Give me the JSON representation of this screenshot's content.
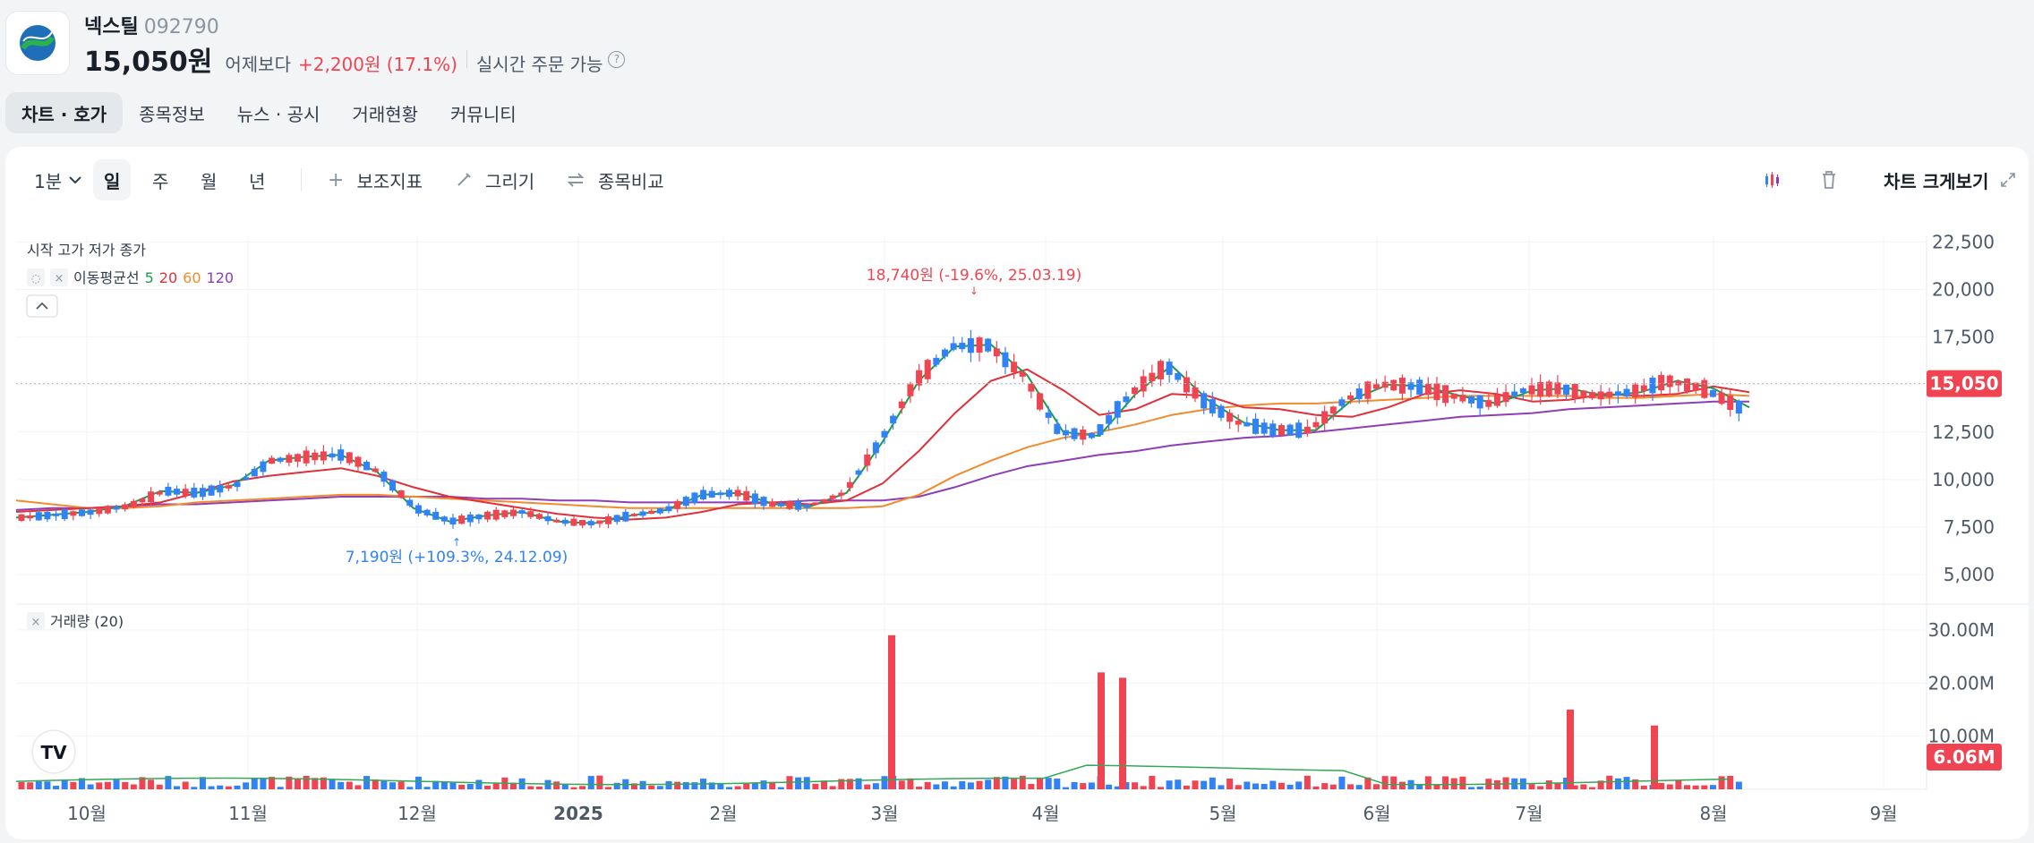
{
  "header": {
    "name": "넥스틸",
    "code": "092790",
    "price": "15,050원",
    "vs_label": "어제보다",
    "change": "+2,200원 (17.1%)",
    "live_status": "실시간 주문 가능",
    "help_glyph": "?",
    "logo_icon": "nexteel-logo-icon"
  },
  "tabs": [
    {
      "label": "차트 · 호가",
      "active": true
    },
    {
      "label": "종목정보",
      "active": false
    },
    {
      "label": "뉴스 · 공시",
      "active": false
    },
    {
      "label": "거래현황",
      "active": false
    },
    {
      "label": "커뮤니티",
      "active": false
    }
  ],
  "toolbar": {
    "interval": "1분",
    "period_day": "일",
    "period_week": "주",
    "period_month": "월",
    "period_year": "년",
    "indicators": "보조지표",
    "draw": "그리기",
    "compare": "종목비교",
    "fullscreen": "차트 크게보기"
  },
  "legend": {
    "ohlc": "시작 고가 저가 종가",
    "ma_label": "이동평균선",
    "ma5": "5",
    "ma20": "20",
    "ma60": "60",
    "ma120": "120",
    "volume_label": "거래량 (20)"
  },
  "colors": {
    "up": "#f04452",
    "down": "#3182f6",
    "ma5": "#1b9e4b",
    "ma20": "#e0303a",
    "ma60": "#f08c2e",
    "ma120": "#8e3fb5",
    "volume_ma": "#34a853"
  },
  "chart_data": [
    {
      "type": "candlestick",
      "title": "",
      "x_ticks": [
        "10월",
        "11월",
        "12월",
        "2025",
        "2월",
        "3월",
        "4월",
        "5월",
        "6월",
        "7월",
        "8월",
        "9월"
      ],
      "y_ticks": [
        "22,500",
        "20,000",
        "17,500",
        "15,000",
        "12,500",
        "10,000",
        "7,500",
        "5,000"
      ],
      "ylim": [
        3500,
        22800
      ],
      "last_price": 15050,
      "last_price_label": "15,050",
      "annotations": [
        {
          "text": "18,740원 (-19.6%, 25.03.19)",
          "value": 18740,
          "kind": "high"
        },
        {
          "text": "7,190원 (+109.3%, 24.12.09)",
          "value": 7190,
          "kind": "low"
        }
      ],
      "moving_averages": {
        "ma5": [
          8000,
          8150,
          8300,
          8600,
          9400,
          9300,
          9700,
          11000,
          11200,
          11300,
          10400,
          8500,
          7800,
          8100,
          8300,
          7800,
          7700,
          8100,
          8400,
          9200,
          9300,
          8700,
          8600,
          9300,
          12000,
          15200,
          17000,
          17100,
          15500,
          12500,
          12300,
          14500,
          16000,
          14200,
          13000,
          12600,
          12600,
          14200,
          15000,
          14900,
          14400,
          14000,
          14700,
          14800,
          14400,
          14600,
          15200,
          14800,
          13800
        ],
        "ma20": [
          8300,
          8400,
          8500,
          8600,
          8800,
          9300,
          9900,
          10200,
          10400,
          10600,
          10200,
          9600,
          9100,
          8800,
          8500,
          8200,
          8000,
          7900,
          8000,
          8300,
          8700,
          8800,
          8700,
          8900,
          9800,
          11500,
          13500,
          15200,
          15800,
          14700,
          13400,
          13700,
          14500,
          14400,
          13800,
          13700,
          13400,
          13300,
          13800,
          14500,
          14700,
          14500,
          14100,
          14200,
          14500,
          14400,
          14500,
          14900,
          14600
        ],
        "ma60": [
          8900,
          8700,
          8500,
          8500,
          8600,
          8800,
          8900,
          9000,
          9100,
          9200,
          9200,
          9100,
          9000,
          8900,
          8800,
          8700,
          8600,
          8500,
          8500,
          8500,
          8500,
          8500,
          8500,
          8500,
          8600,
          9200,
          10200,
          11000,
          11700,
          12200,
          12500,
          12900,
          13400,
          13700,
          13900,
          14000,
          14000,
          14100,
          14200,
          14300,
          14400,
          14400,
          14400,
          14400,
          14300,
          14300,
          14400,
          14500,
          14400
        ],
        "ma120": [
          8400,
          8500,
          8500,
          8600,
          8700,
          8700,
          8800,
          8900,
          9000,
          9100,
          9100,
          9100,
          9100,
          9000,
          9000,
          8900,
          8900,
          8800,
          8800,
          8800,
          8800,
          8800,
          8900,
          8900,
          8900,
          9100,
          9600,
          10200,
          10700,
          11000,
          11300,
          11500,
          11800,
          12000,
          12200,
          12300,
          12500,
          12700,
          12900,
          13100,
          13300,
          13400,
          13500,
          13700,
          13800,
          13900,
          14000,
          14100,
          14100
        ]
      }
    },
    {
      "type": "bar",
      "title": "",
      "y_ticks": [
        "30.00M",
        "20.00M",
        "10.00M"
      ],
      "ylim": [
        0,
        32000000
      ],
      "last_volume_label": "6.06M",
      "peaks": [
        {
          "value": 29000000,
          "label": ""
        },
        {
          "value": 22000000,
          "label": ""
        },
        {
          "value": 21000000,
          "label": ""
        },
        {
          "value": 15000000,
          "label": ""
        },
        {
          "value": 12000000,
          "label": ""
        }
      ]
    }
  ]
}
